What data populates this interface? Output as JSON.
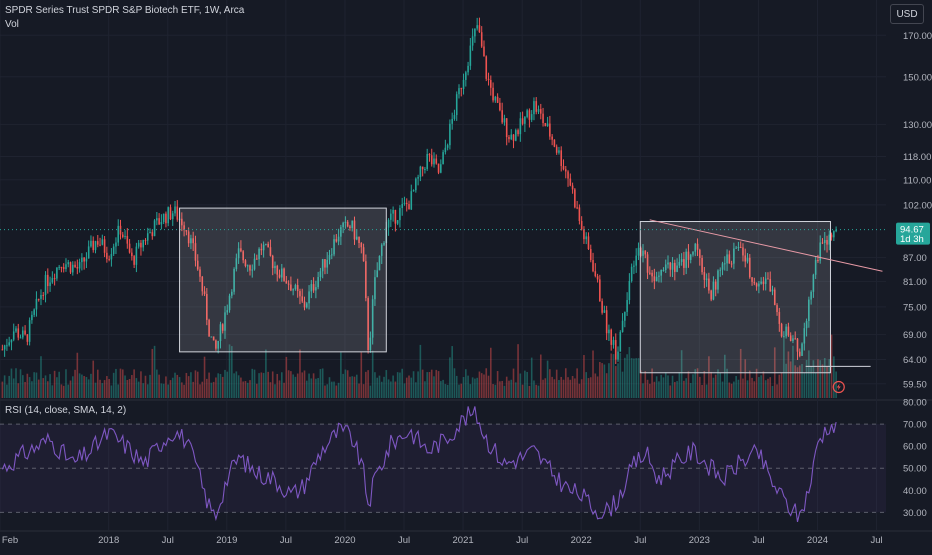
{
  "header": {
    "title": "SPDR Series Trust SPDR S&P Biotech ETF, 1W, Arca",
    "vol_label": "Vol",
    "currency_button": "USD"
  },
  "price_tag": {
    "value": "94.67",
    "countdown": "1d 3h",
    "color": "#26a69a"
  },
  "rsi": {
    "label": "RSI (14, close, SMA, 14, 2)",
    "levels": [
      70,
      50,
      30
    ],
    "ticks": [
      "80.00",
      "70.00",
      "60.00",
      "50.00",
      "40.00",
      "30.00"
    ],
    "line_color": "#7e57c2",
    "points": [
      [
        2017.1,
        50
      ],
      [
        2017.3,
        57
      ],
      [
        2017.5,
        63
      ],
      [
        2017.7,
        52
      ],
      [
        2017.85,
        58
      ],
      [
        2018.0,
        66
      ],
      [
        2018.15,
        60
      ],
      [
        2018.3,
        52
      ],
      [
        2018.45,
        62
      ],
      [
        2018.55,
        67
      ],
      [
        2018.65,
        63
      ],
      [
        2018.75,
        50
      ],
      [
        2018.8,
        40
      ],
      [
        2018.85,
        33
      ],
      [
        2018.9,
        28
      ],
      [
        2019.0,
        45
      ],
      [
        2019.1,
        55
      ],
      [
        2019.25,
        48
      ],
      [
        2019.4,
        45
      ],
      [
        2019.55,
        38
      ],
      [
        2019.65,
        42
      ],
      [
        2019.8,
        58
      ],
      [
        2019.95,
        67
      ],
      [
        2020.05,
        65
      ],
      [
        2020.15,
        50
      ],
      [
        2020.2,
        33
      ],
      [
        2020.25,
        45
      ],
      [
        2020.4,
        62
      ],
      [
        2020.55,
        67
      ],
      [
        2020.7,
        58
      ],
      [
        2020.85,
        63
      ],
      [
        2021.0,
        72
      ],
      [
        2021.1,
        76
      ],
      [
        2021.2,
        63
      ],
      [
        2021.35,
        52
      ],
      [
        2021.5,
        55
      ],
      [
        2021.6,
        58
      ],
      [
        2021.75,
        48
      ],
      [
        2021.9,
        40
      ],
      [
        2022.0,
        38
      ],
      [
        2022.1,
        32
      ],
      [
        2022.2,
        30
      ],
      [
        2022.3,
        35
      ],
      [
        2022.45,
        52
      ],
      [
        2022.55,
        57
      ],
      [
        2022.65,
        45
      ],
      [
        2022.8,
        52
      ],
      [
        2022.95,
        58
      ],
      [
        2023.1,
        50
      ],
      [
        2023.2,
        45
      ],
      [
        2023.35,
        53
      ],
      [
        2023.5,
        57
      ],
      [
        2023.6,
        45
      ],
      [
        2023.75,
        33
      ],
      [
        2023.85,
        28
      ],
      [
        2023.95,
        45
      ],
      [
        2024.0,
        62
      ],
      [
        2024.1,
        70
      ],
      [
        2024.15,
        68
      ]
    ]
  },
  "time_axis": [
    "Feb",
    "2018",
    "Jul",
    "2019",
    "Jul",
    "2020",
    "Jul",
    "2021",
    "Jul",
    "2022",
    "Jul",
    "2023",
    "Jul",
    "2024",
    "Jul"
  ],
  "chart_data": {
    "type": "candlestick",
    "title": "SPDR Series Trust SPDR S&P Biotech ETF, 1W, Arca",
    "y_scale": "log",
    "ylim": [
      57,
      178
    ],
    "xlim": [
      2017.08,
      2024.58
    ],
    "y_ticks": [
      "170.00",
      "150.00",
      "130.00",
      "118.00",
      "110.00",
      "102.00",
      "94.67",
      "87.00",
      "81.00",
      "75.00",
      "69.00",
      "64.00",
      "59.50"
    ],
    "x_tick_positions": [
      2017.08,
      2018.0,
      2018.5,
      2019.0,
      2019.5,
      2020.0,
      2020.5,
      2021.0,
      2021.5,
      2022.0,
      2022.5,
      2023.0,
      2023.5,
      2024.0,
      2024.5
    ],
    "price_path": [
      [
        2017.1,
        66
      ],
      [
        2017.2,
        70
      ],
      [
        2017.3,
        68
      ],
      [
        2017.45,
        80
      ],
      [
        2017.6,
        86
      ],
      [
        2017.75,
        84
      ],
      [
        2017.9,
        92
      ],
      [
        2018.0,
        88
      ],
      [
        2018.1,
        95
      ],
      [
        2018.2,
        86
      ],
      [
        2018.3,
        92
      ],
      [
        2018.45,
        98
      ],
      [
        2018.55,
        100
      ],
      [
        2018.65,
        96
      ],
      [
        2018.75,
        85
      ],
      [
        2018.8,
        78
      ],
      [
        2018.85,
        70
      ],
      [
        2018.9,
        65
      ],
      [
        2019.0,
        75
      ],
      [
        2019.1,
        88
      ],
      [
        2019.2,
        85
      ],
      [
        2019.3,
        90
      ],
      [
        2019.45,
        83
      ],
      [
        2019.55,
        80
      ],
      [
        2019.65,
        75
      ],
      [
        2019.8,
        84
      ],
      [
        2019.95,
        94
      ],
      [
        2020.05,
        96
      ],
      [
        2020.15,
        88
      ],
      [
        2020.2,
        65
      ],
      [
        2020.25,
        80
      ],
      [
        2020.35,
        96
      ],
      [
        2020.55,
        103
      ],
      [
        2020.7,
        118
      ],
      [
        2020.8,
        112
      ],
      [
        2020.9,
        130
      ],
      [
        2021.0,
        150
      ],
      [
        2021.08,
        167
      ],
      [
        2021.12,
        175
      ],
      [
        2021.2,
        150
      ],
      [
        2021.3,
        135
      ],
      [
        2021.4,
        125
      ],
      [
        2021.5,
        130
      ],
      [
        2021.6,
        138
      ],
      [
        2021.75,
        125
      ],
      [
        2021.9,
        110
      ],
      [
        2022.0,
        95
      ],
      [
        2022.1,
        85
      ],
      [
        2022.2,
        72
      ],
      [
        2022.3,
        65
      ],
      [
        2022.4,
        80
      ],
      [
        2022.5,
        90
      ],
      [
        2022.6,
        82
      ],
      [
        2022.7,
        86
      ],
      [
        2022.85,
        85
      ],
      [
        2022.95,
        90
      ],
      [
        2023.1,
        78
      ],
      [
        2023.2,
        85
      ],
      [
        2023.35,
        90
      ],
      [
        2023.45,
        82
      ],
      [
        2023.6,
        80
      ],
      [
        2023.7,
        70
      ],
      [
        2023.78,
        68
      ],
      [
        2023.85,
        65
      ],
      [
        2023.95,
        80
      ],
      [
        2024.0,
        88
      ],
      [
        2024.1,
        92
      ],
      [
        2024.16,
        94.67
      ]
    ],
    "annotations": {
      "rect1": {
        "x": [
          2018.6,
          2020.35
        ],
        "y": [
          65.5,
          101
        ]
      },
      "rect2": {
        "x": [
          2022.5,
          2024.11
        ],
        "y": [
          61.5,
          97
        ]
      },
      "support_line": {
        "x": [
          2023.9,
          2024.45
        ],
        "y": 62.7
      },
      "trendline": {
        "points": [
          [
            2022.58,
            97.5
          ],
          [
            2024.55,
            83.5
          ]
        ]
      }
    },
    "colors": {
      "up": "#26a69a",
      "down": "#ef5350",
      "vol_up": "rgba(38,166,154,0.45)",
      "vol_down": "rgba(239,83,80,0.45)"
    }
  }
}
